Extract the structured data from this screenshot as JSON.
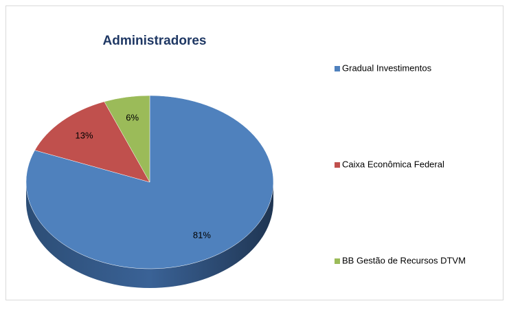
{
  "chart_data": {
    "type": "pie",
    "title": "Administradores",
    "categories": [
      "Gradual Investimentos",
      "Caixa Econômica Federal",
      "BB Gestão de Recursos DTVM"
    ],
    "values": [
      81,
      13,
      6
    ],
    "value_labels": [
      "81%",
      "13%",
      "6%"
    ],
    "colors": [
      "#4f81bd",
      "#c0504d",
      "#9bbb59"
    ],
    "legend": "right"
  }
}
